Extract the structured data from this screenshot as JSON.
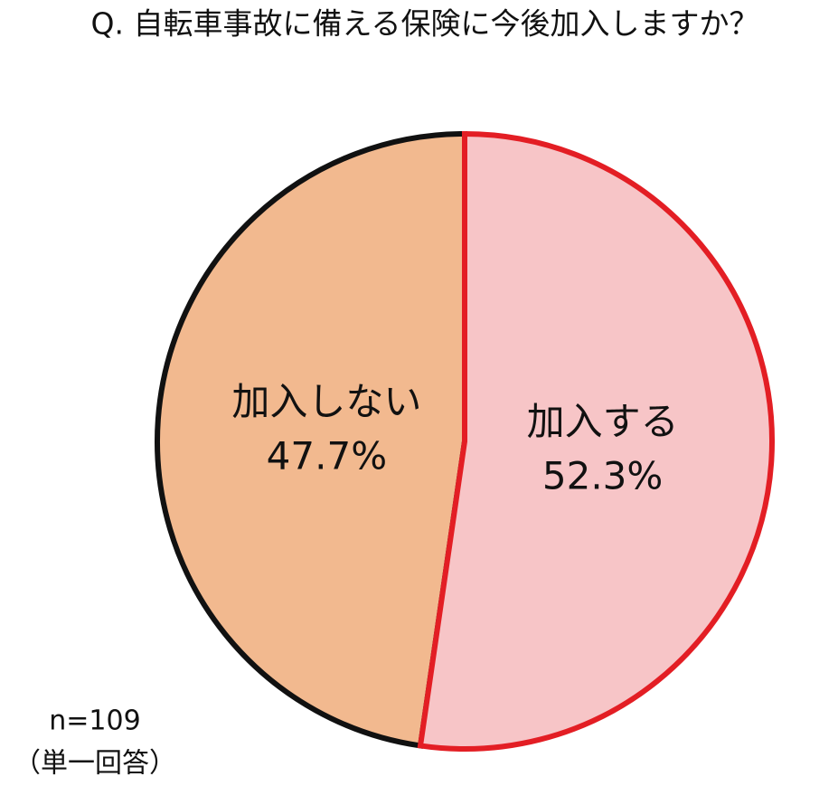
{
  "chart_data": {
    "type": "pie",
    "title": "Q. 自転車事故に備える保険に今後加入しますか？",
    "categories": [
      "加入する",
      "加入しない"
    ],
    "values": [
      52.3,
      47.7
    ],
    "value_labels": [
      "52.3%",
      "47.7%"
    ],
    "colors": [
      "#f7c5c7",
      "#f2b98f"
    ],
    "edge_colors": [
      "#e31e24",
      "#111111"
    ],
    "notes": [
      "n=109",
      "（単一回答）"
    ]
  }
}
